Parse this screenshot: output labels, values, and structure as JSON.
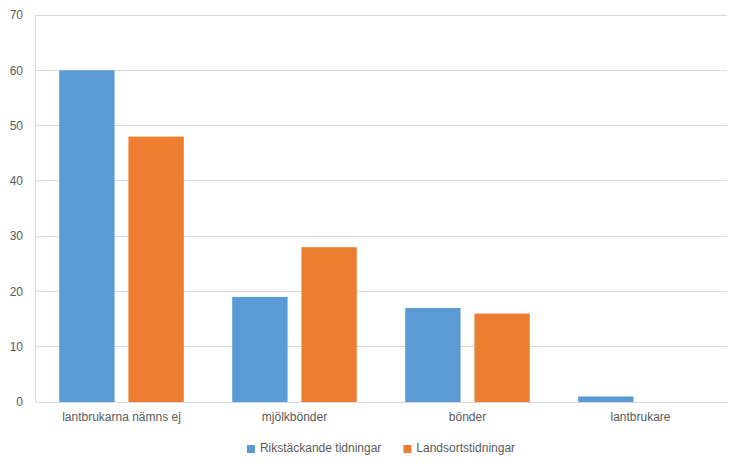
{
  "chart_data": {
    "type": "bar",
    "categories": [
      "lantbrukarna nämns ej",
      "mjölkbönder",
      "bönder",
      "lantbrukare"
    ],
    "series": [
      {
        "name": "Rikstäckande tidningar",
        "color": "#5b9bd5",
        "values": [
          60,
          19,
          17,
          1
        ]
      },
      {
        "name": "Landsortstidningar",
        "color": "#ed7d31",
        "values": [
          48,
          28,
          16,
          0
        ]
      }
    ],
    "ylim": [
      0,
      70
    ],
    "yticks": [
      0,
      10,
      20,
      30,
      40,
      50,
      60,
      70
    ],
    "grid": true,
    "legend": "bottom"
  }
}
